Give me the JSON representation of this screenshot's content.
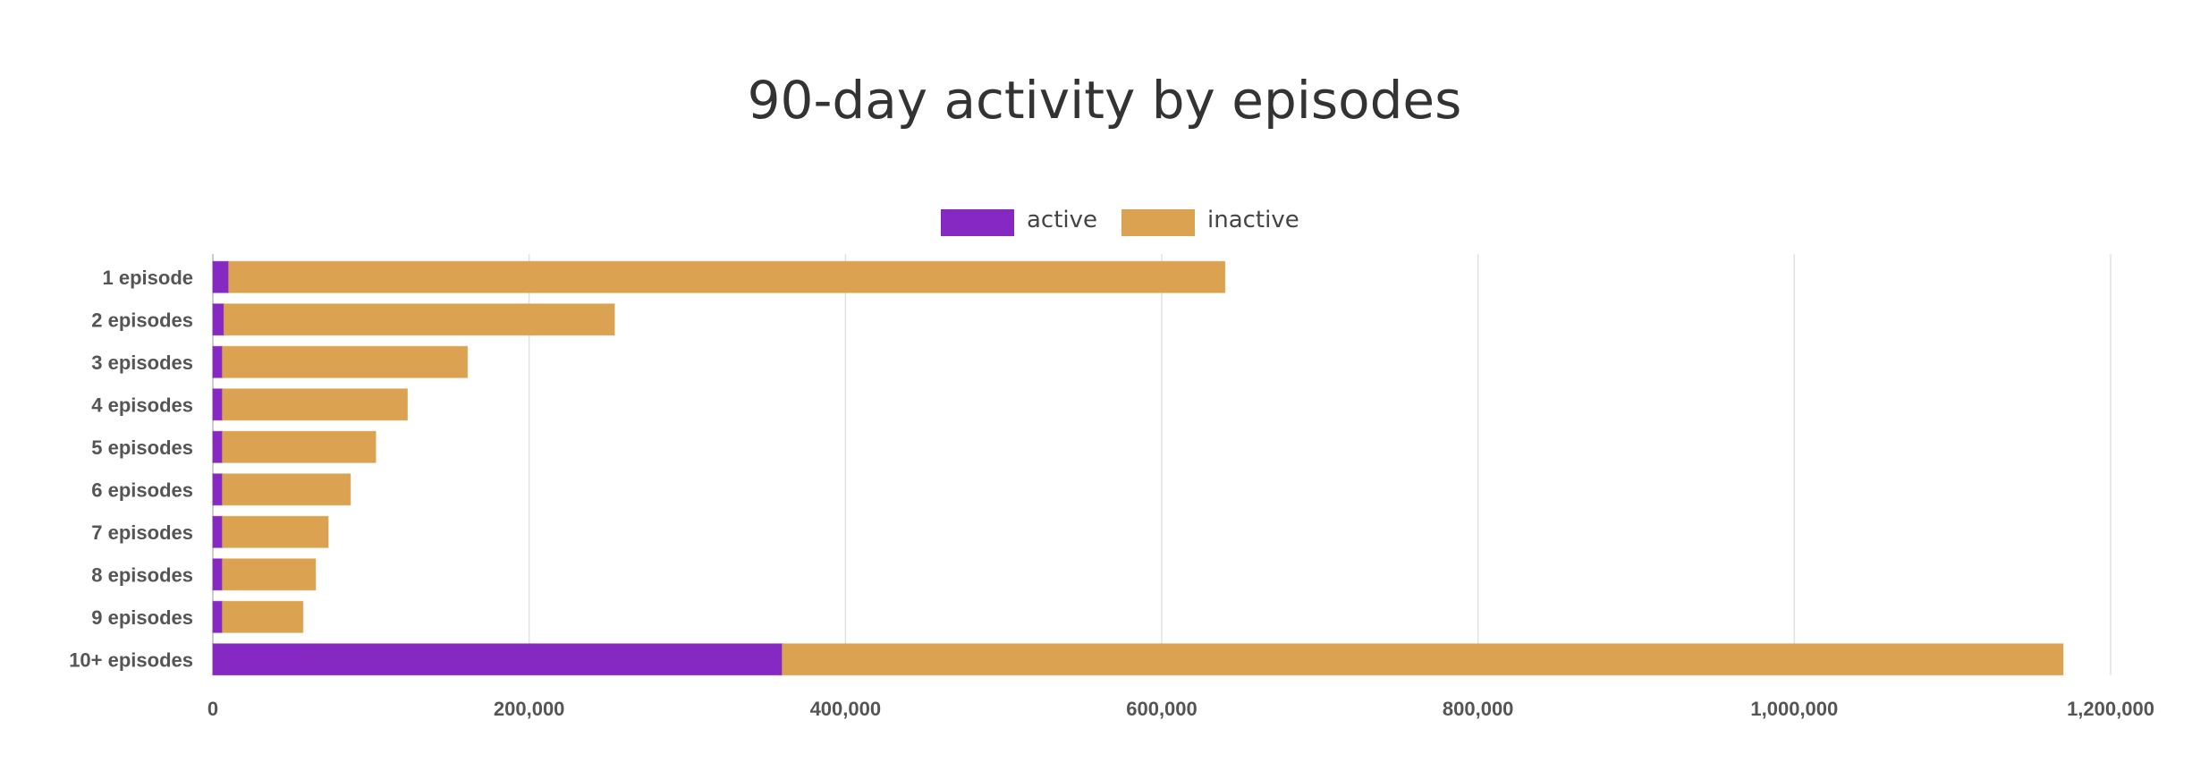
{
  "chart_data": {
    "type": "bar",
    "orientation": "horizontal",
    "stacked": true,
    "title": "90-day activity by episodes",
    "xlabel": "",
    "ylabel": "",
    "categories": [
      "1 episode",
      "2 episodes",
      "3 episodes",
      "4 episodes",
      "5 episodes",
      "6 episodes",
      "7 episodes",
      "8 episodes",
      "9 episodes",
      "10+ episodes"
    ],
    "series": [
      {
        "name": "active",
        "color": "#8629c2",
        "values": [
          10000,
          7000,
          6000,
          6000,
          6000,
          6000,
          6000,
          6000,
          6000,
          360000
        ]
      },
      {
        "name": "inactive",
        "color": "#dba251",
        "values": [
          630000,
          247000,
          155000,
          117000,
          97000,
          81000,
          67000,
          59000,
          51000,
          810000
        ]
      }
    ],
    "xlim": [
      0,
      1200000
    ],
    "x_ticks": [
      "0",
      "200,000",
      "400,000",
      "600,000",
      "800,000",
      "1,000,000",
      "1,200,000"
    ],
    "grid": true,
    "legend_position": "top"
  }
}
